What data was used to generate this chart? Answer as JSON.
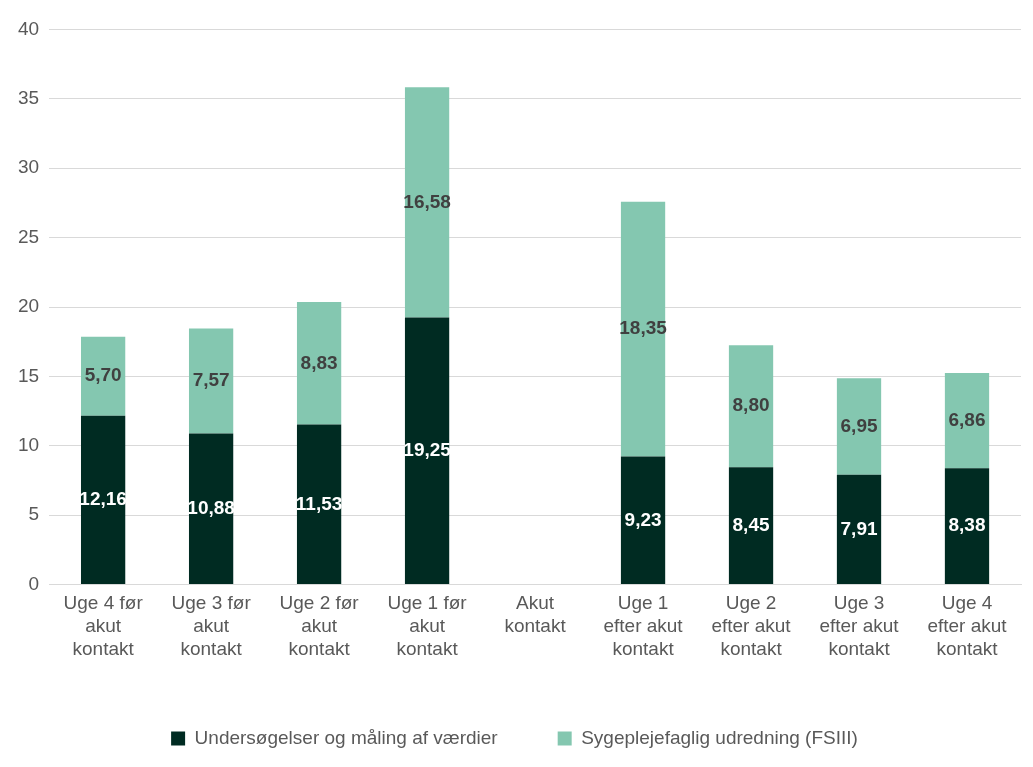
{
  "chart_data": {
    "type": "bar",
    "stacked": true,
    "categories": [
      "Uge 4 før akut kontakt",
      "Uge 3 før akut kontakt",
      "Uge 2 før akut kontakt",
      "Uge 1 før akut kontakt",
      "Akut kontakt",
      "Uge 1 efter akut kontakt",
      "Uge 2 efter akut kontakt",
      "Uge 3 efter akut kontakt",
      "Uge 4 efter akut kontakt"
    ],
    "series": [
      {
        "name": "Undersøgelser og måling af værdier",
        "color": "#002b22",
        "values": [
          12.16,
          10.88,
          11.53,
          19.25,
          null,
          9.23,
          8.45,
          7.91,
          8.38
        ],
        "value_labels": [
          "12,16",
          "10,88",
          "11,53",
          "19,25",
          null,
          "9,23",
          "8,45",
          "7,91",
          "8,38"
        ]
      },
      {
        "name": "Sygeplejefaglig udredning (FSIII)",
        "color": "#84c7b0",
        "values": [
          5.7,
          7.57,
          8.83,
          16.58,
          null,
          18.35,
          8.8,
          6.95,
          6.86
        ],
        "value_labels": [
          "5,70",
          "7,57",
          "8,83",
          "16,58",
          null,
          "18,35",
          "8,80",
          "6,95",
          "6,86"
        ]
      }
    ],
    "ylim": [
      0,
      40
    ],
    "yticks": [
      0,
      5,
      10,
      15,
      20,
      25,
      30,
      35,
      40
    ],
    "grid": "y",
    "legend": "bottom"
  }
}
